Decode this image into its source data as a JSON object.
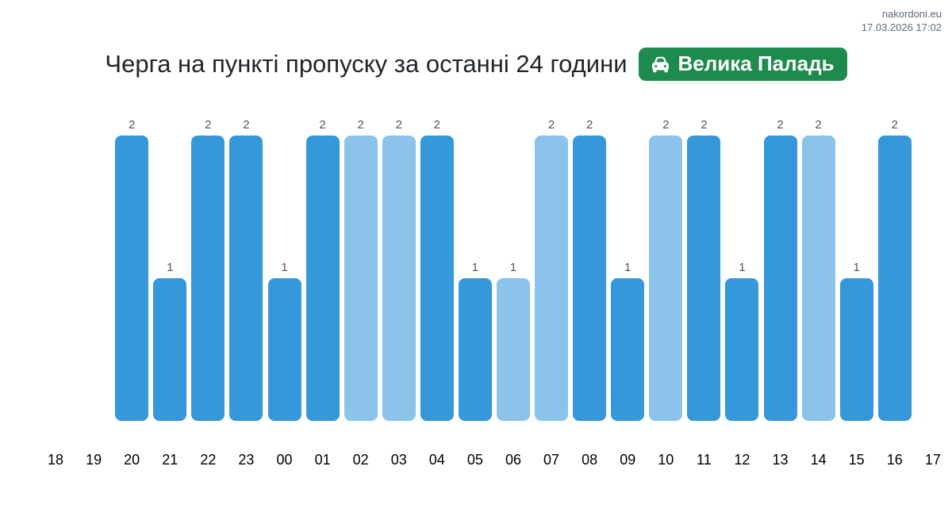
{
  "header": {
    "site": "nakordoni.eu",
    "timestamp": "17.03.2026 17:02"
  },
  "title": "Черга на пункті пропуску за останні 24 години",
  "badge": {
    "label": "Велика Паладь",
    "icon": "car-front-icon",
    "background_color": "#1e8b4e",
    "text_color": "#ffffff"
  },
  "chart_data": {
    "type": "bar",
    "title": "Черга на пункті пропуску за останні 24 години",
    "xlabel": "",
    "ylabel": "",
    "ylim": [
      0,
      2.2
    ],
    "grid": false,
    "legend": "none",
    "value_labels_shown": true,
    "colors": {
      "dark": "#3498db",
      "light": "#8cc3ea"
    },
    "categories": [
      "18",
      "19",
      "20",
      "21",
      "22",
      "23",
      "00",
      "01",
      "02",
      "03",
      "04",
      "05",
      "06",
      "07",
      "08",
      "09",
      "10",
      "11",
      "12",
      "13",
      "14",
      "15",
      "16",
      "17"
    ],
    "values": [
      0,
      0,
      2,
      1,
      2,
      2,
      1,
      2,
      2,
      2,
      2,
      1,
      1,
      2,
      2,
      1,
      2,
      2,
      1,
      2,
      2,
      1,
      2,
      0
    ],
    "points": [
      {
        "hour": "18",
        "value": 0,
        "shade": "none"
      },
      {
        "hour": "19",
        "value": 0,
        "shade": "none"
      },
      {
        "hour": "20",
        "value": 2,
        "shade": "dark"
      },
      {
        "hour": "21",
        "value": 1,
        "shade": "dark"
      },
      {
        "hour": "22",
        "value": 2,
        "shade": "dark"
      },
      {
        "hour": "23",
        "value": 2,
        "shade": "dark"
      },
      {
        "hour": "00",
        "value": 1,
        "shade": "dark"
      },
      {
        "hour": "01",
        "value": 2,
        "shade": "dark"
      },
      {
        "hour": "02",
        "value": 2,
        "shade": "light"
      },
      {
        "hour": "03",
        "value": 2,
        "shade": "light"
      },
      {
        "hour": "04",
        "value": 2,
        "shade": "dark"
      },
      {
        "hour": "05",
        "value": 1,
        "shade": "dark"
      },
      {
        "hour": "06",
        "value": 1,
        "shade": "light"
      },
      {
        "hour": "07",
        "value": 2,
        "shade": "light"
      },
      {
        "hour": "08",
        "value": 2,
        "shade": "dark"
      },
      {
        "hour": "09",
        "value": 1,
        "shade": "dark"
      },
      {
        "hour": "10",
        "value": 2,
        "shade": "light"
      },
      {
        "hour": "11",
        "value": 2,
        "shade": "dark"
      },
      {
        "hour": "12",
        "value": 1,
        "shade": "dark"
      },
      {
        "hour": "13",
        "value": 2,
        "shade": "dark"
      },
      {
        "hour": "14",
        "value": 2,
        "shade": "light"
      },
      {
        "hour": "15",
        "value": 1,
        "shade": "dark"
      },
      {
        "hour": "16",
        "value": 2,
        "shade": "dark"
      },
      {
        "hour": "17",
        "value": 0,
        "shade": "none"
      }
    ]
  }
}
